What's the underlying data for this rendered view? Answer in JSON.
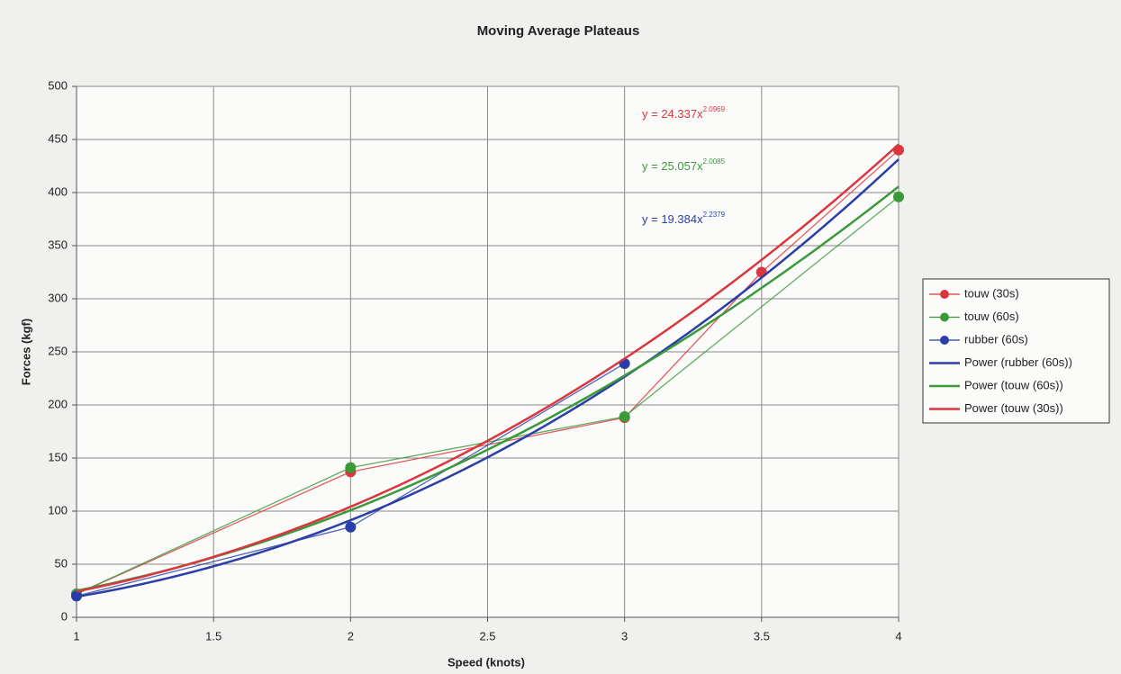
{
  "chart_data": {
    "type": "scatter",
    "title": "Moving Average Plateaus",
    "x_label": "Speed (knots)",
    "y_label": "Forces (kgf)",
    "xlim": [
      1,
      4
    ],
    "xticks": [
      1,
      1.5,
      2,
      2.5,
      3,
      3.5,
      4
    ],
    "ylim": [
      0,
      500
    ],
    "yticks": [
      0,
      50,
      100,
      150,
      200,
      250,
      300,
      350,
      400,
      450,
      500
    ],
    "grid": true,
    "legend": "right",
    "series": [
      {
        "name": "touw (30s)",
        "color": "#d9363e",
        "x": [
          1,
          2,
          3,
          3.5,
          4
        ],
        "values": [
          22,
          137,
          188,
          325,
          440
        ]
      },
      {
        "name": "touw (60s)",
        "color": "#3a9a3a",
        "x": [
          1,
          2,
          3,
          4
        ],
        "values": [
          22,
          141,
          189,
          396
        ]
      },
      {
        "name": "rubber (60s)",
        "color": "#2a3ea8",
        "x": [
          1,
          2,
          3
        ],
        "values": [
          20,
          85,
          239
        ]
      }
    ],
    "trendlines": [
      {
        "name": "Power (rubber (60s))",
        "color": "#2a3ea8",
        "a": 19.384,
        "b": 2.2379,
        "label": "y = 19.384x"
      },
      {
        "name": "Power (touw (60s))",
        "color": "#3a9a3a",
        "a": 25.057,
        "b": 2.0085,
        "label": "y = 25.057x"
      },
      {
        "name": "Power (touw (30s))",
        "color": "#d9363e",
        "a": 24.337,
        "b": 2.0969,
        "label": "y = 24.337x"
      }
    ]
  }
}
